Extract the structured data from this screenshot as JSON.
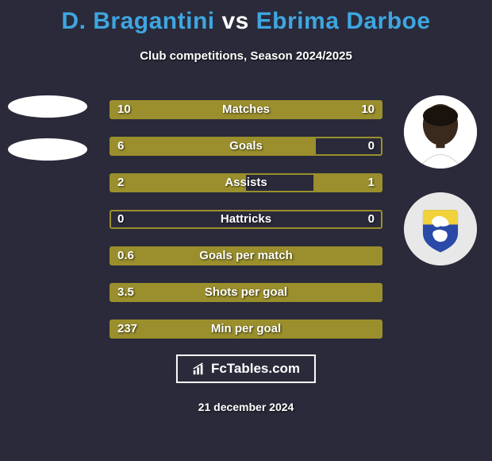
{
  "title": {
    "player1": "D. Bragantini",
    "vs": "vs",
    "player2": "Ebrima Darboe"
  },
  "subtitle": "Club competitions, Season 2024/2025",
  "colors": {
    "background": "#2a2a3a",
    "bar_fill": "#9a8f2c",
    "bar_border": "#9a8f2c",
    "title_player": "#3ea6e0",
    "text": "#ffffff"
  },
  "stats": [
    {
      "label": "Matches",
      "left_val": "10",
      "right_val": "10",
      "left_pct": 50,
      "right_pct": 50
    },
    {
      "label": "Goals",
      "left_val": "6",
      "right_val": "0",
      "left_pct": 76,
      "right_pct": 0
    },
    {
      "label": "Assists",
      "left_val": "2",
      "right_val": "1",
      "left_pct": 50,
      "right_pct": 25
    },
    {
      "label": "Hattricks",
      "left_val": "0",
      "right_val": "0",
      "left_pct": 0,
      "right_pct": 0
    },
    {
      "label": "Goals per match",
      "left_val": "0.6",
      "right_val": "",
      "left_pct": 100,
      "right_pct": 0
    },
    {
      "label": "Shots per goal",
      "left_val": "3.5",
      "right_val": "",
      "left_pct": 100,
      "right_pct": 0
    },
    {
      "label": "Min per goal",
      "left_val": "237",
      "right_val": "",
      "left_pct": 100,
      "right_pct": 0
    }
  ],
  "footer_brand": "FcTables.com",
  "date": "21 december 2024",
  "player2_face": {
    "skin": "#3a2a1e",
    "shirt": "#ffffff"
  },
  "team_logo": {
    "shield_top": "#f2d23a",
    "shield_bottom": "#2a4aa8",
    "lion": "#ffffff"
  }
}
